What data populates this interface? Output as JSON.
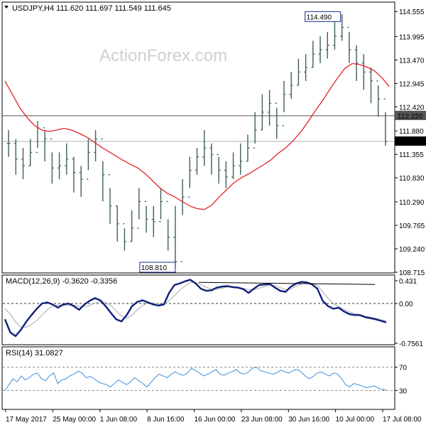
{
  "colors": {
    "candle": "#3f5d5d",
    "ma": "#e0242a",
    "macd": "#0f1f7a",
    "signal": "#a9a9a9",
    "rsi": "#3f8fdd",
    "level": "#555555",
    "frame": "#000000",
    "grid": "#666666"
  },
  "header": {
    "price": "USDJPY,H4  111.620 111.697 111.549 111.645",
    "macd": "MACD(12,26,9) -0.3620 -0.3356",
    "rsi": "RSI(14) 31.0827"
  },
  "watermark": "ActionForex.com",
  "chart_data": [
    {
      "type": "ohlc",
      "panel": "price",
      "symbol": "USDJPY",
      "timeframe": "H4",
      "ylim": [
        108.715,
        114.75
      ],
      "y_ticks": [
        "114.555",
        "113.995",
        "113.470",
        "112.945",
        "112.420",
        "111.880",
        "111.355",
        "110.830",
        "110.290",
        "109.765",
        "109.240",
        "108.715"
      ],
      "ma_line": [
        113.0,
        112.7,
        112.4,
        112.18,
        112.0,
        111.9,
        111.87,
        111.9,
        111.94,
        111.9,
        111.83,
        111.75,
        111.64,
        111.52,
        111.42,
        111.32,
        111.22,
        111.13,
        111.05,
        110.92,
        110.76,
        110.6,
        110.48,
        110.4,
        110.3,
        110.2,
        110.14,
        110.12,
        110.22,
        110.4,
        110.56,
        110.72,
        110.83,
        110.92,
        111.02,
        111.12,
        111.23,
        111.38,
        111.5,
        111.66,
        111.85,
        112.08,
        112.33,
        112.56,
        112.82,
        113.06,
        113.28,
        113.39,
        113.37,
        113.31,
        113.23,
        113.08,
        112.88
      ],
      "closes": [
        111.6,
        111.25,
        111.1,
        111.4,
        111.95,
        111.7,
        111.05,
        111.1,
        111.25,
        110.95,
        110.8,
        111.4,
        111.7,
        110.9,
        110.2,
        109.8,
        109.4,
        109.7,
        110.3,
        109.9,
        109.85,
        110.3,
        109.5,
        108.95,
        110.4,
        111.0,
        111.3,
        111.5,
        111.35,
        111.0,
        110.85,
        111.1,
        111.2,
        111.5,
        111.9,
        112.3,
        112.5,
        112.0,
        112.7,
        112.9,
        113.2,
        113.3,
        113.6,
        113.7,
        113.8,
        114.0,
        114.2,
        113.7,
        113.4,
        113.2,
        113.0,
        112.6,
        111.645
      ],
      "highs": [
        111.9,
        111.7,
        111.5,
        111.7,
        112.1,
        111.9,
        111.4,
        111.4,
        111.6,
        111.3,
        111.1,
        111.7,
        111.9,
        111.2,
        110.6,
        110.2,
        109.7,
        110.1,
        110.6,
        110.2,
        110.2,
        110.6,
        109.9,
        110.2,
        110.8,
        111.3,
        111.5,
        111.9,
        111.6,
        111.3,
        111.2,
        111.4,
        111.6,
        111.8,
        112.3,
        112.7,
        112.8,
        112.4,
        113.0,
        113.2,
        113.5,
        113.6,
        113.9,
        114.0,
        114.1,
        114.4,
        114.49,
        114.1,
        113.8,
        113.6,
        113.3,
        112.9,
        112.3
      ],
      "lows": [
        111.3,
        110.9,
        110.8,
        111.1,
        111.5,
        111.2,
        110.7,
        110.8,
        110.9,
        110.5,
        110.4,
        111.0,
        111.2,
        110.3,
        109.8,
        109.4,
        109.2,
        109.4,
        109.9,
        109.6,
        109.5,
        109.9,
        109.2,
        108.81,
        110.0,
        110.6,
        110.9,
        111.1,
        110.9,
        110.7,
        110.6,
        110.8,
        110.9,
        111.2,
        111.6,
        111.9,
        112.0,
        111.7,
        112.3,
        112.6,
        112.9,
        113.0,
        113.3,
        113.4,
        113.5,
        113.7,
        113.9,
        113.4,
        113.0,
        112.8,
        112.5,
        112.2,
        111.549
      ],
      "annotations": {
        "high_label": "114.490",
        "low_label": "108.810"
      },
      "current_price": "111.645",
      "level_line": "112.220",
      "x_ticks": [
        "17 May 2017",
        "25 May 00:00",
        "1 Jun 08:00",
        "8 Jun 16:00",
        "16 Jun 00:00",
        "23 Jun 08:00",
        "30 Jun 16:00",
        "10 Jul 00:00",
        "17 Jul 08:00"
      ]
    },
    {
      "type": "line",
      "panel": "macd",
      "title": "MACD(12,26,9) -0.3620 -0.3356",
      "ylim": [
        -0.7561,
        0.431
      ],
      "y_ticks": [
        "0.431",
        "0.00",
        "-0.7561"
      ],
      "series": [
        {
          "values": [
            -0.3,
            -0.55,
            -0.62,
            -0.5,
            -0.35,
            -0.22,
            -0.1,
            0.0,
            0.02,
            -0.02,
            -0.08,
            -0.02,
            0.0,
            -0.05,
            -0.12,
            -0.02,
            0.05,
            0.1,
            0.06,
            -0.05,
            -0.18,
            -0.3,
            -0.34,
            -0.22,
            -0.05,
            0.03,
            0.06,
            0.02,
            -0.02,
            -0.04,
            -0.02,
            0.2,
            0.35,
            0.38,
            0.42,
            0.45,
            0.38,
            0.28,
            0.24,
            0.25,
            0.3,
            0.32,
            0.33,
            0.31,
            0.3,
            0.27,
            0.2,
            0.28,
            0.35,
            0.36,
            0.37,
            0.3,
            0.24,
            0.22,
            0.32,
            0.38,
            0.41,
            0.4,
            0.36,
            0.28,
            0.05,
            -0.05,
            -0.1,
            -0.08,
            -0.15,
            -0.2,
            -0.22,
            -0.22,
            -0.26,
            -0.28,
            -0.3,
            -0.33,
            -0.36
          ]
        },
        {
          "values": [
            -0.1,
            -0.2,
            -0.35,
            -0.45,
            -0.45,
            -0.4,
            -0.32,
            -0.22,
            -0.12,
            -0.05,
            -0.03,
            -0.04,
            -0.03,
            -0.03,
            -0.05,
            -0.06,
            -0.04,
            0.01,
            0.04,
            0.02,
            -0.04,
            -0.14,
            -0.24,
            -0.28,
            -0.22,
            -0.12,
            -0.04,
            0.01,
            0.01,
            -0.01,
            -0.02,
            0.05,
            0.15,
            0.25,
            0.33,
            0.4,
            0.4,
            0.36,
            0.31,
            0.27,
            0.27,
            0.29,
            0.31,
            0.32,
            0.31,
            0.29,
            0.26,
            0.26,
            0.29,
            0.32,
            0.35,
            0.34,
            0.3,
            0.26,
            0.28,
            0.33,
            0.37,
            0.39,
            0.38,
            0.34,
            0.22,
            0.1,
            0.0,
            -0.06,
            -0.11,
            -0.16,
            -0.19,
            -0.21,
            -0.24,
            -0.26,
            -0.28,
            -0.31,
            -0.33
          ]
        }
      ],
      "level_line": "0.00"
    },
    {
      "type": "line",
      "panel": "rsi",
      "title": "RSI(14) 31.0827",
      "ylim": [
        0,
        100
      ],
      "y_ticks": [
        "70",
        "30"
      ],
      "levels": [
        70,
        30
      ],
      "series": [
        {
          "values": [
            30,
            40,
            50,
            45,
            55,
            48,
            52,
            58,
            60,
            50,
            47,
            55,
            60,
            42,
            48,
            50,
            55,
            58,
            63,
            60,
            52,
            54,
            50,
            45,
            42,
            40,
            36,
            42,
            48,
            44,
            40,
            45,
            52,
            47,
            42,
            36,
            44,
            52,
            58,
            55,
            52,
            58,
            62,
            58,
            56,
            60,
            68,
            64,
            60,
            55,
            58,
            62,
            66,
            58,
            56,
            60,
            62,
            66,
            60,
            58,
            62,
            68,
            70,
            64,
            62,
            60,
            58,
            60,
            65,
            62,
            60,
            64,
            66,
            62,
            55,
            50,
            54,
            60,
            62,
            58,
            55,
            60,
            58,
            50,
            40,
            36,
            42,
            40,
            38,
            35,
            36,
            38,
            34,
            32,
            31
          ]
        }
      ]
    }
  ]
}
